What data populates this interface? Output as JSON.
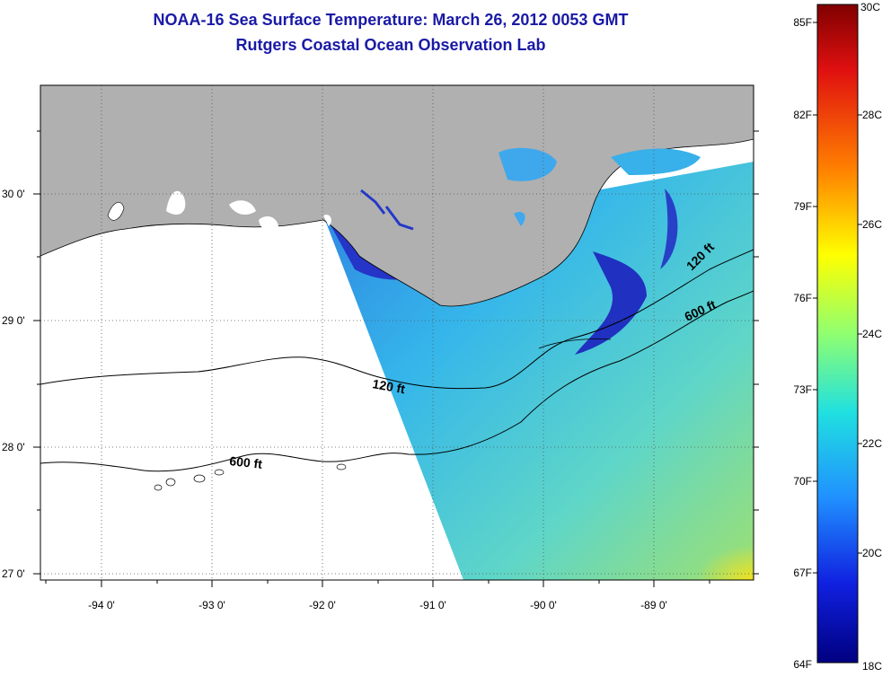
{
  "title": "NOAA-16 Sea Surface Temperature:  March 26, 2012 0053 GMT",
  "subtitle": "Rutgers Coastal Ocean Observation Lab",
  "map": {
    "lon_ticks": [
      "-94 0'",
      "-93 0'",
      "-92 0'",
      "-91 0'",
      "-90 0'",
      "-89 0'"
    ],
    "lat_ticks": [
      "30 0'",
      "29 0'",
      "28 0'",
      "27 0'"
    ],
    "contour_labels": [
      "120 ft",
      "600 ft",
      "120 ft",
      "600 ft"
    ],
    "colors": {
      "land": "#b0b0b0",
      "nodata": "#ffffff",
      "water_mid": "#36bde8",
      "cold_plume": "#2030c0"
    }
  },
  "colorbar": {
    "fahrenheit": [
      "85F",
      "82F",
      "79F",
      "76F",
      "73F",
      "70F",
      "67F",
      "64F"
    ],
    "celsius": [
      "30C",
      "28C",
      "26C",
      "24C",
      "22C",
      "20C",
      "18C"
    ]
  }
}
